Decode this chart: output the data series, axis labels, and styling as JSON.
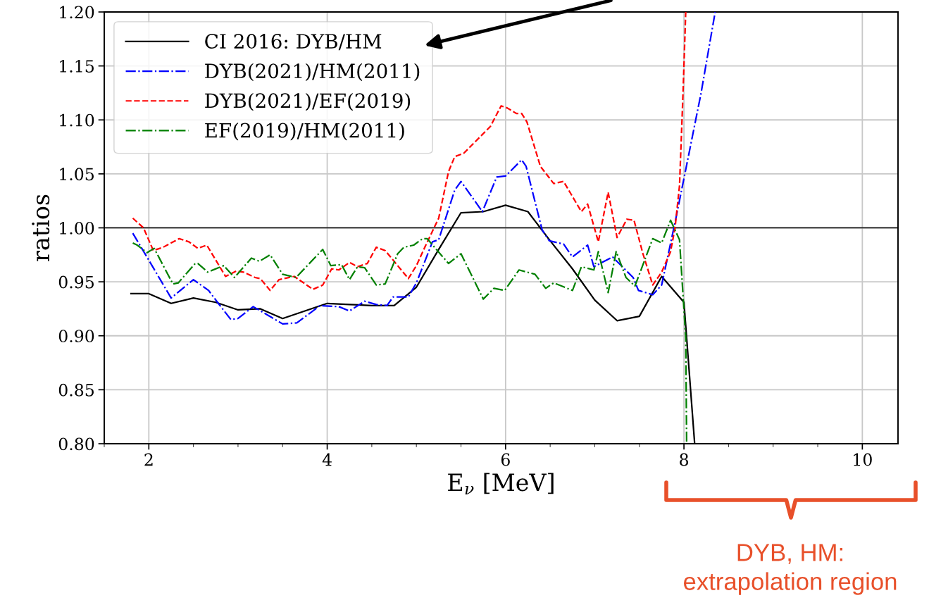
{
  "chart_data": {
    "type": "line",
    "xlabel": "E$_{ν}$ [MeV]",
    "ylabel": "ratios",
    "xlim": [
      1.5,
      10.4
    ],
    "xticks": [
      2,
      4,
      6,
      8,
      10
    ],
    "ylim": [
      0.8,
      1.2
    ],
    "yticks": [
      {
        "value": 0.8,
        "label": "0.80"
      },
      {
        "value": 0.85,
        "label": "0.85"
      },
      {
        "value": 0.9,
        "label": "0.90"
      },
      {
        "value": 0.95,
        "label": "0.95"
      },
      {
        "value": 1.0,
        "label": "1.00"
      },
      {
        "value": 1.05,
        "label": "1.05"
      },
      {
        "value": 1.1,
        "label": "1.10"
      },
      {
        "value": 1.15,
        "label": "1.15"
      },
      {
        "value": 1.2,
        "label": "1.20"
      }
    ],
    "grid": true,
    "legend": "top left",
    "ref_lines": [
      {
        "axis": "y",
        "value": 1.0,
        "color": "#000000",
        "line_style": "solid"
      }
    ],
    "annotations": [
      "DYB, HM:\nextrapolation region"
    ],
    "series": [
      {
        "name": "CI 2016: DYB/HM",
        "color": "#000000",
        "line_style": "solid",
        "x": [
          1.8,
          2.0,
          2.25,
          2.5,
          2.75,
          3.0,
          3.25,
          3.5,
          3.75,
          4.0,
          4.25,
          4.5,
          4.75,
          5.0,
          5.25,
          5.5,
          5.75,
          6.0,
          6.25,
          6.5,
          6.75,
          7.0,
          7.25,
          7.5,
          7.75,
          8.0,
          8.12
        ],
        "values": [
          0.939,
          0.939,
          0.93,
          0.935,
          0.931,
          0.924,
          0.925,
          0.916,
          0.923,
          0.93,
          0.929,
          0.928,
          0.928,
          0.945,
          0.98,
          1.014,
          1.015,
          1.021,
          1.015,
          0.988,
          0.962,
          0.933,
          0.914,
          0.918,
          0.955,
          0.931,
          0.8
        ]
      },
      {
        "name": "DYB(2021)/HM(2011)",
        "color": "#0000ff",
        "line_style": "dashdot",
        "x": [
          1.82,
          2.0,
          2.25,
          2.5,
          2.67,
          2.77,
          2.92,
          3.0,
          3.17,
          3.5,
          3.66,
          3.92,
          4.13,
          4.25,
          4.42,
          4.55,
          4.67,
          4.74,
          4.91,
          5.0,
          5.18,
          5.25,
          5.43,
          5.5,
          5.74,
          5.9,
          6.0,
          6.18,
          6.23,
          6.41,
          6.49,
          6.65,
          6.75,
          6.92,
          6.99,
          7.2,
          7.43,
          7.49,
          7.65,
          7.75,
          7.82,
          7.91,
          8.02,
          8.19,
          8.35
        ],
        "values": [
          0.995,
          0.97,
          0.935,
          0.952,
          0.942,
          0.931,
          0.915,
          0.916,
          0.927,
          0.911,
          0.912,
          0.928,
          0.927,
          0.923,
          0.932,
          0.929,
          0.928,
          0.936,
          0.936,
          0.949,
          0.987,
          0.989,
          1.035,
          1.043,
          1.015,
          1.047,
          1.048,
          1.063,
          1.057,
          0.998,
          0.988,
          0.985,
          0.973,
          0.984,
          0.964,
          0.973,
          0.954,
          0.942,
          0.938,
          0.947,
          0.974,
          1.009,
          1.054,
          1.124,
          1.2
        ]
      },
      {
        "name": "DYB(2021)/EF(2019)",
        "color": "#ff0000",
        "line_style": "dashed",
        "x": [
          1.82,
          1.94,
          2.05,
          2.16,
          2.34,
          2.45,
          2.55,
          2.65,
          2.86,
          2.98,
          3.06,
          3.19,
          3.25,
          3.36,
          3.46,
          3.63,
          3.84,
          3.95,
          4.05,
          4.13,
          4.25,
          4.34,
          4.45,
          4.55,
          4.65,
          4.82,
          4.91,
          5.0,
          5.1,
          5.25,
          5.36,
          5.43,
          5.53,
          5.65,
          5.83,
          5.95,
          6.02,
          6.12,
          6.18,
          6.24,
          6.39,
          6.54,
          6.65,
          6.85,
          6.92,
          7.04,
          7.15,
          7.25,
          7.36,
          7.44,
          7.54,
          7.65,
          7.75,
          7.85,
          7.9,
          7.95,
          7.99,
          8.02
        ],
        "values": [
          1.009,
          1.0,
          0.979,
          0.982,
          0.99,
          0.987,
          0.981,
          0.984,
          0.955,
          0.96,
          0.959,
          0.954,
          0.953,
          0.942,
          0.952,
          0.955,
          0.943,
          0.947,
          0.962,
          0.961,
          0.968,
          0.964,
          0.967,
          0.982,
          0.979,
          0.962,
          0.953,
          0.965,
          0.983,
          1.009,
          1.052,
          1.066,
          1.069,
          1.079,
          1.094,
          1.113,
          1.111,
          1.106,
          1.106,
          1.098,
          1.057,
          1.041,
          1.043,
          1.015,
          1.022,
          0.987,
          1.033,
          0.991,
          1.008,
          1.007,
          0.976,
          0.947,
          0.959,
          0.978,
          1.0,
          1.039,
          1.126,
          1.2
        ]
      },
      {
        "name": "EF(2019)/HM(2011)",
        "color": "#008000",
        "line_style": "dashdot",
        "x": [
          1.82,
          1.87,
          1.98,
          2.06,
          2.27,
          2.33,
          2.52,
          2.55,
          2.66,
          2.84,
          2.96,
          3.15,
          3.24,
          3.36,
          3.5,
          3.65,
          3.95,
          4.04,
          4.16,
          4.25,
          4.34,
          4.42,
          4.55,
          4.65,
          4.79,
          4.86,
          4.97,
          5.07,
          5.12,
          5.36,
          5.5,
          5.75,
          5.87,
          5.99,
          6.15,
          6.33,
          6.45,
          6.54,
          6.75,
          6.85,
          6.99,
          7.04,
          7.15,
          7.24,
          7.35,
          7.45,
          7.65,
          7.75,
          7.85,
          7.95,
          8.02,
          8.03
        ],
        "values": [
          0.986,
          0.984,
          0.977,
          0.981,
          0.948,
          0.949,
          0.967,
          0.967,
          0.959,
          0.965,
          0.954,
          0.972,
          0.969,
          0.975,
          0.957,
          0.954,
          0.98,
          0.965,
          0.966,
          0.952,
          0.964,
          0.963,
          0.947,
          0.948,
          0.976,
          0.982,
          0.984,
          0.99,
          0.99,
          0.967,
          0.976,
          0.934,
          0.944,
          0.942,
          0.961,
          0.957,
          0.944,
          0.949,
          0.942,
          0.964,
          0.961,
          0.978,
          0.94,
          0.978,
          0.954,
          0.946,
          0.99,
          0.986,
          1.007,
          0.989,
          0.898,
          0.8
        ]
      }
    ]
  }
}
